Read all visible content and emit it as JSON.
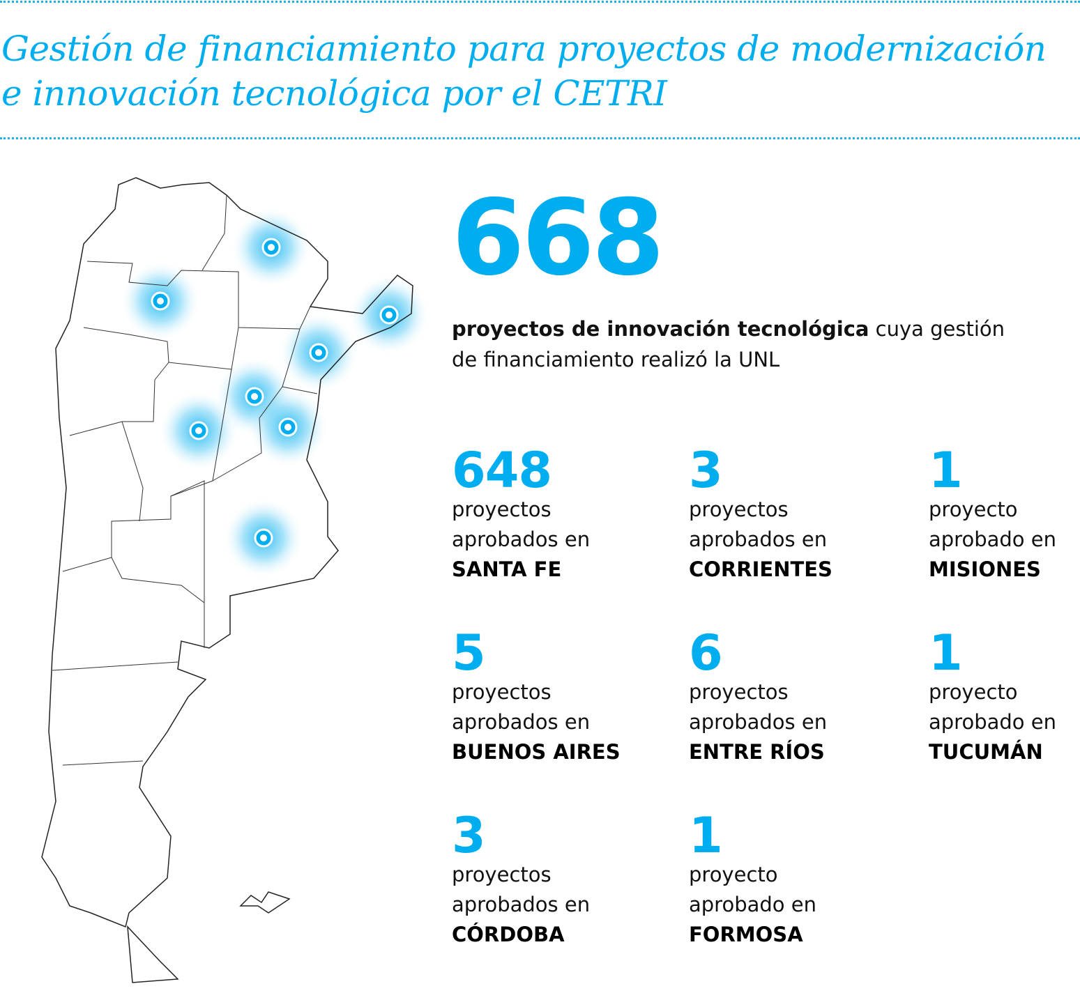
{
  "title": {
    "main": "Gestión de financiamiento para proyectos de modernización e innovación tecnológica por el",
    "acronym": "CETRI"
  },
  "summary": {
    "total": "668",
    "bold_text": "proyectos de innovación tecnológica",
    "text": "cuya gestión de financiamiento realizó la",
    "acronym": "UNL"
  },
  "stats": [
    {
      "value": "648",
      "line1": "proyectos",
      "line2": "aprobados en",
      "province": "SANTA FE"
    },
    {
      "value": "3",
      "line1": "proyectos",
      "line2": "aprobados en",
      "province": "CORRIENTES"
    },
    {
      "value": "1",
      "line1": "proyecto",
      "line2": "aprobado en",
      "province": "MISIONES"
    },
    {
      "value": "5",
      "line1": "proyectos",
      "line2": "aprobados en",
      "province": "BUENOS AIRES"
    },
    {
      "value": "6",
      "line1": "proyectos",
      "line2": "aprobados en",
      "province": "ENTRE RÍOS"
    },
    {
      "value": "1",
      "line1": "proyecto",
      "line2": "aprobado en",
      "province": "TUCUMÁN"
    },
    {
      "value": "3",
      "line1": "proyectos",
      "line2": "aprobados en",
      "province": "CÓRDOBA"
    },
    {
      "value": "1",
      "line1": "proyecto",
      "line2": "aprobado en",
      "province": "FORMOSA"
    }
  ],
  "map": {
    "markers": [
      "Formosa",
      "Tucumán",
      "Misiones",
      "Corrientes",
      "Santa Fe",
      "Córdoba",
      "Entre Ríos",
      "Buenos Aires"
    ]
  },
  "colors": {
    "accent": "#00aeef",
    "text": "#111111"
  }
}
